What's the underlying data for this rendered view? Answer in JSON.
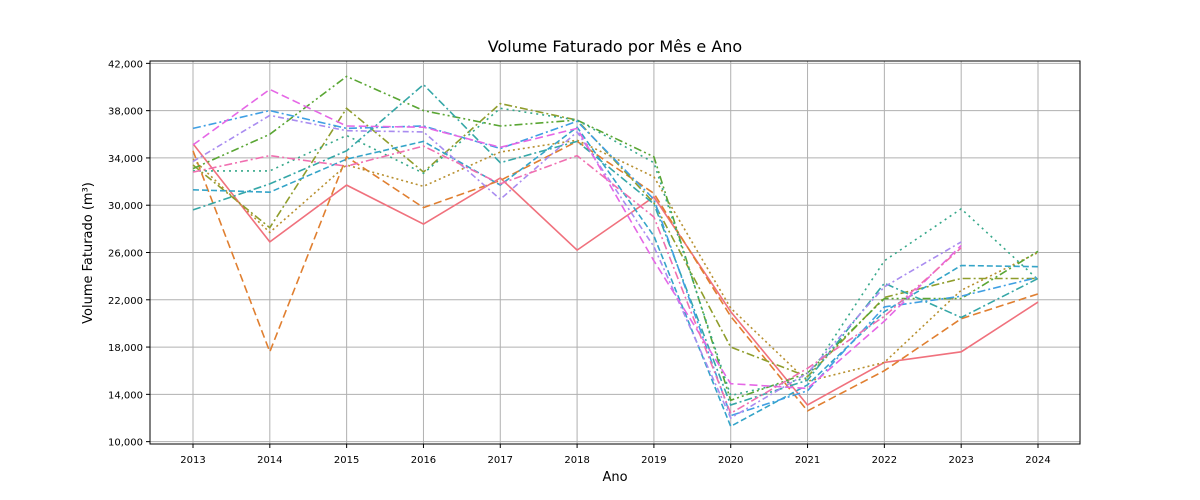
{
  "chart_data": {
    "type": "line",
    "title": "Volume Faturado por Mês e Ano",
    "xlabel": "Ano",
    "ylabel": "Volume Faturado (m³)",
    "x": [
      "2013",
      "2014",
      "2015",
      "2016",
      "2017",
      "2018",
      "2019",
      "2020",
      "2021",
      "2022",
      "2023",
      "2024"
    ],
    "ylim": [
      9800,
      42200
    ],
    "yticks": [
      10000,
      14000,
      18000,
      22000,
      26000,
      30000,
      34000,
      38000,
      42000
    ],
    "ytick_labels": [
      "10,000",
      "14,000",
      "18,000",
      "22,000",
      "26,000",
      "30,000",
      "34,000",
      "38,000",
      "42,000"
    ],
    "grid": true,
    "series": [
      {
        "color": "#f0717d",
        "dash": "",
        "values": [
          35200,
          26900,
          31700,
          28400,
          32300,
          26200,
          30700,
          21000,
          13100,
          16700,
          17600,
          21800
        ]
      },
      {
        "color": "#e07f30",
        "dash": "8,4",
        "values": [
          34600,
          17600,
          34100,
          29800,
          32100,
          35400,
          31000,
          20600,
          12600,
          16000,
          20400,
          22500
        ]
      },
      {
        "color": "#b89030",
        "dash": "2,3",
        "values": [
          33900,
          27700,
          33400,
          31600,
          34500,
          35500,
          32400,
          21300,
          15100,
          16700,
          22800,
          26000
        ]
      },
      {
        "color": "#8f9d2c",
        "dash": "8,3,2,3",
        "values": [
          33400,
          28100,
          38200,
          32800,
          38600,
          37200,
          30200,
          18000,
          15500,
          22200,
          23800,
          23800
        ]
      },
      {
        "color": "#5aa634",
        "dash": "8,3,2,3,2,3",
        "values": [
          33100,
          36000,
          40900,
          38000,
          36700,
          37200,
          34100,
          13500,
          15800,
          22100,
          22100,
          26100
        ]
      },
      {
        "color": "#36a88a",
        "dash": "2,4",
        "values": [
          32900,
          32900,
          35900,
          32700,
          38200,
          37200,
          33600,
          13900,
          15400,
          25300,
          29700,
          23700
        ]
      },
      {
        "color": "#35a7a7",
        "dash": "8,3,2,3",
        "values": [
          29600,
          31800,
          34600,
          40200,
          33600,
          35400,
          30100,
          13100,
          15200,
          23400,
          20500,
          23800
        ]
      },
      {
        "color": "#34a4c8",
        "dash": "6,3",
        "values": [
          31300,
          31100,
          33900,
          35400,
          31700,
          36600,
          27400,
          11300,
          14800,
          21000,
          24900,
          24800
        ]
      },
      {
        "color": "#3f9fe3",
        "dash": "8,3,2,3",
        "values": [
          36500,
          38000,
          36500,
          36700,
          34800,
          37100,
          30500,
          12200,
          14300,
          21400,
          22300,
          23900
        ]
      },
      {
        "color": "#a98cf0",
        "dash": "6,3,2,3",
        "values": [
          33700,
          37600,
          36300,
          36200,
          30500,
          36200,
          26500,
          12000,
          15800,
          23100,
          26900,
          null
        ]
      },
      {
        "color": "#e567e6",
        "dash": "8,4",
        "values": [
          35100,
          39800,
          36700,
          36600,
          34900,
          36500,
          25300,
          14900,
          14500,
          20200,
          26600,
          null
        ]
      },
      {
        "color": "#f06fb0",
        "dash": "8,3,2,3",
        "values": [
          32800,
          34200,
          33300,
          35000,
          31800,
          34200,
          29000,
          12400,
          16200,
          20600,
          26400,
          null
        ]
      }
    ]
  }
}
